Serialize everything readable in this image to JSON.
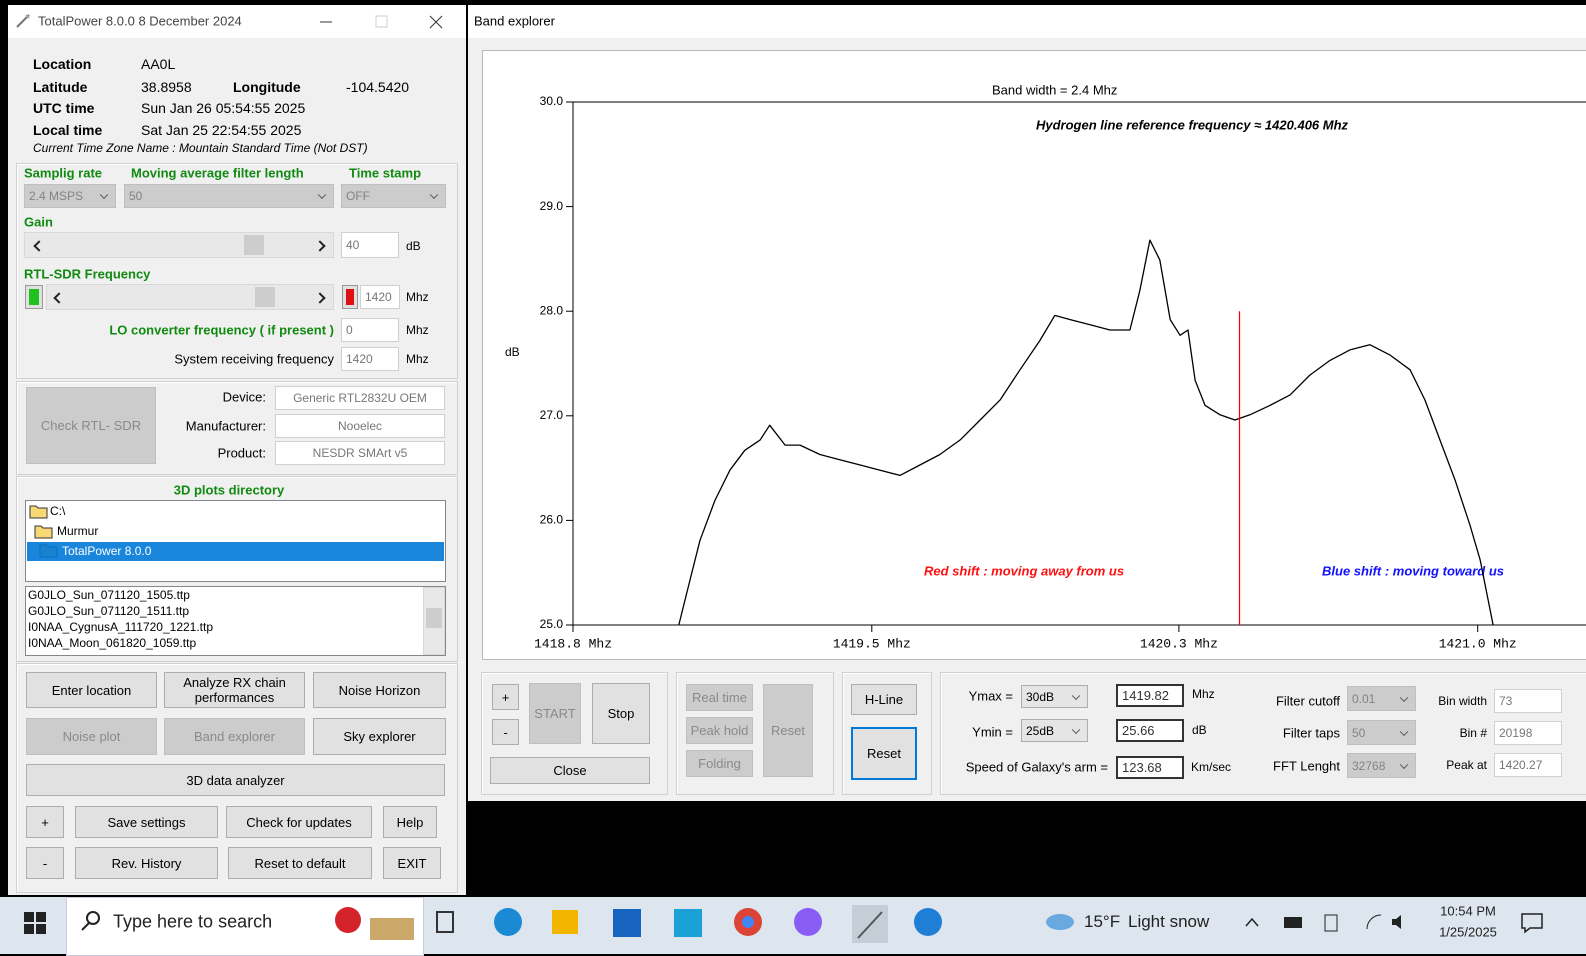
{
  "left_window": {
    "title": "TotalPower 8.0.0  8 December 2024",
    "info": {
      "location_label": "Location",
      "location": "AA0L",
      "latitude_label": "Latitude",
      "latitude": "38.8958",
      "longitude_label": "Longitude",
      "longitude": "-104.5420",
      "utc_label": "UTC time",
      "utc": "Sun Jan 26 05:54:55 2025",
      "local_label": "Local time",
      "local": "Sat Jan 25 22:54:55 2025",
      "timezone": "Current Time Zone Name : Mountain Standard Time (Not DST)"
    },
    "settings": {
      "sampling_label": "Samplig rate",
      "sampling": "2.4 MSPS",
      "filter_label": "Moving average filter length",
      "filter": "50",
      "timestamp_label": "Time stamp",
      "timestamp": "OFF",
      "gain_label": "Gain",
      "gain": "40",
      "gain_unit": "dB",
      "freq_label": "RTL-SDR Frequency",
      "freq": "1420",
      "freq_unit": "Mhz",
      "lo_label": "LO converter frequency ( if present )",
      "lo": "0",
      "lo_unit": "Mhz",
      "sys_label": "System receiving  frequency",
      "sys": "1420",
      "sys_unit": "Mhz"
    },
    "device": {
      "check_button": "Check RTL- SDR",
      "device_label": "Device:",
      "device": "Generic RTL2832U OEM",
      "manufacturer_label": "Manufacturer:",
      "manufacturer": "Nooelec",
      "product_label": "Product:",
      "product": "NESDR SMArt v5"
    },
    "directory": {
      "label": "3D plots directory",
      "tree": [
        "C:\\",
        "Murmur",
        "TotalPower 8.0.0"
      ],
      "files": [
        "G0JLO_Sun_071120_1505.ttp",
        "G0JLO_Sun_071120_1511.ttp",
        "I0NAA_CygnusA_111720_1221.ttp",
        "I0NAA_Moon_061820_1059.ttp"
      ]
    },
    "buttons": {
      "enter_location": "Enter location",
      "analyze": "Analyze RX chain performances",
      "noise_horizon": "Noise Horizon",
      "noise_plot": "Noise plot",
      "band_explorer": "Band explorer",
      "sky_explorer": "Sky explorer",
      "analyzer_3d": "3D data analyzer",
      "plus": "+",
      "save": "Save settings",
      "updates": "Check for updates",
      "help": "Help",
      "minus": "-",
      "history": "Rev. History",
      "reset_default": "Reset to default",
      "exit": "EXIT"
    }
  },
  "band_explorer": {
    "title": "Band explorer",
    "chart": {
      "type": "line",
      "bandwidth": "Band width =    2.4 Mhz",
      "annotation": "Hydrogen line reference frequency ≈ 1420.406 Mhz",
      "ylabel": "dB",
      "red_text": "Red shift : moving away from us",
      "blue_text": "Blue shift : moving toward us",
      "color": "#000000",
      "x": [
        1419.055,
        1419.082,
        1419.106,
        1419.142,
        1419.178,
        1419.214,
        1419.251,
        1419.274,
        1419.311,
        1419.347,
        1419.395,
        1419.443,
        1419.492,
        1419.54,
        1419.588,
        1419.636,
        1419.684,
        1419.733,
        1419.781,
        1419.829,
        1419.877,
        1419.925,
        1419.961,
        1419.998,
        1420.046,
        1420.094,
        1420.142,
        1420.166,
        1420.19,
        1420.214,
        1420.239,
        1420.263,
        1420.282,
        1420.299,
        1420.323,
        1420.359,
        1420.395,
        1420.431,
        1420.48,
        1420.528,
        1420.576,
        1420.624,
        1420.672,
        1420.72,
        1420.769,
        1420.817,
        1420.853,
        1420.889,
        1420.925,
        1420.961,
        1420.986,
        1421.01,
        1421.017
      ],
      "values": [
        25.0,
        25.43,
        25.81,
        26.19,
        26.48,
        26.67,
        26.77,
        26.91,
        26.72,
        26.72,
        26.63,
        26.58,
        26.53,
        26.48,
        26.43,
        26.53,
        26.63,
        26.77,
        26.96,
        27.15,
        27.44,
        27.72,
        27.96,
        27.92,
        27.87,
        27.82,
        27.82,
        28.2,
        28.68,
        28.49,
        27.92,
        27.77,
        27.82,
        27.34,
        27.1,
        27.01,
        26.96,
        27.01,
        27.1,
        27.2,
        27.39,
        27.53,
        27.63,
        27.68,
        27.58,
        27.44,
        27.15,
        26.77,
        26.39,
        25.96,
        25.62,
        25.14,
        25.0
      ],
      "xlim": [
        1418.8,
        1421.2
      ],
      "ylim": [
        25,
        30
      ],
      "xticks": [
        {
          "value": 1418.8,
          "label": "1418.8 Mhz"
        },
        {
          "value": 1419.52,
          "label": "1419.5 Mhz"
        },
        {
          "value": 1420.26,
          "label": "1420.3 Mhz"
        },
        {
          "value": 1420.98,
          "label": "1421.0 Mhz"
        }
      ],
      "yticks": [
        {
          "value": 25,
          "label": "25.0"
        },
        {
          "value": 26,
          "label": "26.0"
        },
        {
          "value": 27,
          "label": "27.0"
        },
        {
          "value": 28,
          "label": "28.0"
        },
        {
          "value": 29,
          "label": "29.0"
        },
        {
          "value": 30,
          "label": "30.0"
        }
      ],
      "reference_line": {
        "x": 1420.406,
        "y_top": 28,
        "color": "#ff0000"
      }
    },
    "controls": {
      "plus": "+",
      "minus": "-",
      "start": "START",
      "stop": "Stop",
      "close": "Close",
      "real_time": "Real time",
      "peak_hold": "Peak hold",
      "folding": "Folding",
      "reset": "Reset",
      "hline": "H-Line",
      "hline_reset": "Reset",
      "ymax_label": "Ymax =",
      "ymax": "30dB",
      "ymin_label": "Ymin =",
      "ymin": "25dB",
      "freq": "1419.82",
      "freq_unit": "Mhz",
      "db": "25.66",
      "db_unit": "dB",
      "speed_label": "Speed of Galaxy's arm =",
      "speed": "123.68",
      "speed_unit": "Km/sec",
      "cutoff_label": "Filter cutoff",
      "cutoff": "0.01",
      "taps_label": "Filter taps",
      "taps": "50",
      "fft_label": "FFT Lenght",
      "fft": "32768",
      "bin_width_label": "Bin width",
      "bin_width": "73",
      "bin_label": "Bin #",
      "bin": "20198",
      "peak_label": "Peak at",
      "peak": "1420.27"
    }
  },
  "taskbar": {
    "search": "Type here to search",
    "temperature": "15°F",
    "weather": "Light snow",
    "time": "10:54 PM",
    "date": "1/25/2025"
  }
}
